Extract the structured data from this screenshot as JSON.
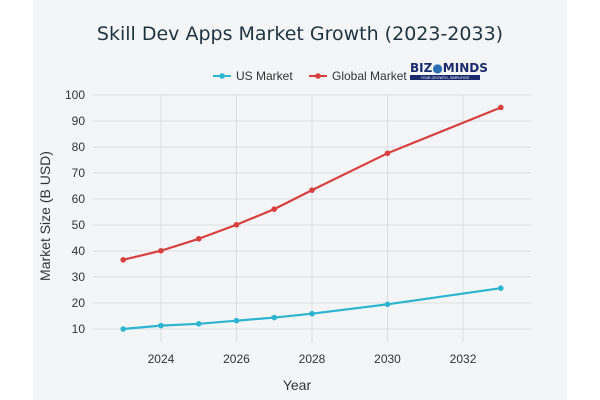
{
  "chart_data": {
    "type": "line",
    "title": "Skill Dev Apps Market Growth (2023-2033)",
    "xlabel": "Year",
    "ylabel": "Market Size (B USD)",
    "x": [
      2023,
      2024,
      2025,
      2026,
      2027,
      2028,
      2030,
      2033
    ],
    "xlim": [
      2022.2,
      2033.8
    ],
    "ylim": [
      5,
      100
    ],
    "xticks": [
      2024,
      2026,
      2028,
      2030,
      2032
    ],
    "yticks": [
      10,
      20,
      30,
      40,
      50,
      60,
      70,
      80,
      90,
      100
    ],
    "grid": true,
    "legend_position": "top-center",
    "series": [
      {
        "name": "US Market",
        "color": "#2bb5d0",
        "values": [
          10.0,
          11.3,
          12.0,
          13.2,
          14.4,
          15.9,
          19.5,
          25.7
        ]
      },
      {
        "name": "Global Market",
        "color": "#d8403f",
        "values": [
          36.6,
          40.1,
          44.7,
          50.1,
          56.1,
          63.4,
          77.6,
          95.2
        ]
      }
    ]
  },
  "logo": {
    "text": "BIZ MINDS",
    "tagline": "YOUR GROWTH, SIMPLIFIED",
    "color": "#1a2a6c"
  }
}
